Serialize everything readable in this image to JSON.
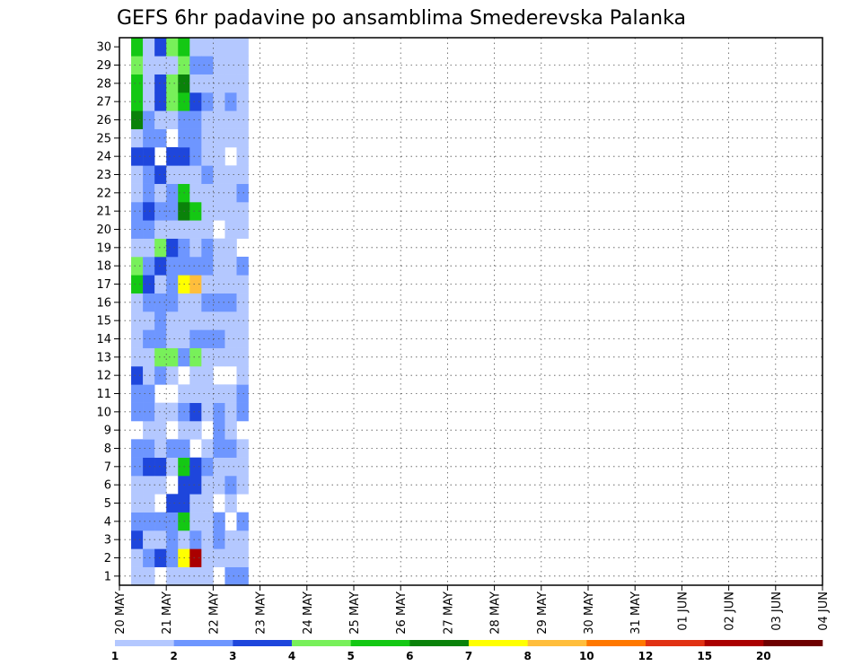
{
  "chart_data": {
    "type": "heatmap",
    "title": "GEFS 6hr padavine po ansamblima Smederevska Palanka",
    "xlabel": "",
    "ylabel": "",
    "x_tick_labels": [
      "20 MAY",
      "21 MAY",
      "22 MAY",
      "23 MAY",
      "24 MAY",
      "25 MAY",
      "26 MAY",
      "27 MAY",
      "28 MAY",
      "29 MAY",
      "30 MAY",
      "31 MAY",
      "01 JUN",
      "02 JUN",
      "03 JUN",
      "04 JUN"
    ],
    "x_range_days": [
      0,
      15
    ],
    "y_tick_labels": [
      "1",
      "2",
      "3",
      "4",
      "5",
      "6",
      "7",
      "8",
      "9",
      "10",
      "11",
      "12",
      "13",
      "14",
      "15",
      "16",
      "17",
      "18",
      "19",
      "20",
      "21",
      "22",
      "23",
      "24",
      "25",
      "26",
      "27",
      "28",
      "29",
      "30"
    ],
    "y_range": [
      0.5,
      30.5
    ],
    "time_step_hours": 6,
    "grid": "dotted",
    "legend_position": "bottom",
    "legend": {
      "levels": [
        "1",
        "2",
        "3",
        "4",
        "5",
        "6",
        "7",
        "8",
        "10",
        "12",
        "15",
        "20"
      ],
      "colors": [
        "#b4c8ff",
        "#6e96ff",
        "#1e46dc",
        "#78f05a",
        "#14c814",
        "#0a820a",
        "#ffff00",
        "#ffbe3c",
        "#ff7800",
        "#e13214",
        "#aa0000",
        "#6e0000"
      ]
    },
    "colors": [
      "#b4c8ff",
      "#6e96ff",
      "#1e46dc",
      "#78f05a",
      "#14c814",
      "#0a820a",
      "#ffff00",
      "#ffbe3c",
      "#ff7800",
      "#e13214",
      "#aa0000",
      "#6e0000"
    ],
    "cells": [
      [
        1,
        1,
        1
      ],
      [
        1,
        2,
        1
      ],
      [
        1,
        3,
        3
      ],
      [
        1,
        4,
        2
      ],
      [
        1,
        5,
        1
      ],
      [
        1,
        6,
        1
      ],
      [
        1,
        7,
        2
      ],
      [
        1,
        8,
        2
      ],
      [
        1,
        10,
        2
      ],
      [
        1,
        11,
        2
      ],
      [
        1,
        12,
        3
      ],
      [
        1,
        13,
        1
      ],
      [
        1,
        14,
        1
      ],
      [
        1,
        15,
        1
      ],
      [
        1,
        16,
        1
      ],
      [
        1,
        17,
        5
      ],
      [
        1,
        18,
        4
      ],
      [
        1,
        19,
        1
      ],
      [
        1,
        20,
        2
      ],
      [
        1,
        21,
        2
      ],
      [
        1,
        22,
        1
      ],
      [
        1,
        23,
        1
      ],
      [
        1,
        24,
        3
      ],
      [
        1,
        25,
        1
      ],
      [
        1,
        26,
        6
      ],
      [
        1,
        27,
        5
      ],
      [
        1,
        28,
        5
      ],
      [
        1,
        29,
        4
      ],
      [
        1,
        30,
        5
      ],
      [
        2,
        1,
        1
      ],
      [
        2,
        2,
        2
      ],
      [
        2,
        3,
        1
      ],
      [
        2,
        4,
        2
      ],
      [
        2,
        5,
        1
      ],
      [
        2,
        6,
        1
      ],
      [
        2,
        7,
        3
      ],
      [
        2,
        8,
        2
      ],
      [
        2,
        9,
        1
      ],
      [
        2,
        10,
        2
      ],
      [
        2,
        11,
        2
      ],
      [
        2,
        12,
        1
      ],
      [
        2,
        13,
        1
      ],
      [
        2,
        14,
        2
      ],
      [
        2,
        15,
        1
      ],
      [
        2,
        16,
        2
      ],
      [
        2,
        17,
        3
      ],
      [
        2,
        18,
        2
      ],
      [
        2,
        19,
        1
      ],
      [
        2,
        20,
        2
      ],
      [
        2,
        21,
        3
      ],
      [
        2,
        22,
        2
      ],
      [
        2,
        23,
        2
      ],
      [
        2,
        24,
        3
      ],
      [
        2,
        25,
        2
      ],
      [
        2,
        26,
        2
      ],
      [
        2,
        27,
        1
      ],
      [
        2,
        28,
        1
      ],
      [
        2,
        29,
        1
      ],
      [
        2,
        30,
        1
      ],
      [
        3,
        2,
        3
      ],
      [
        3,
        3,
        1
      ],
      [
        3,
        4,
        2
      ],
      [
        3,
        6,
        1
      ],
      [
        3,
        7,
        3
      ],
      [
        3,
        8,
        1
      ],
      [
        3,
        9,
        1
      ],
      [
        3,
        10,
        1
      ],
      [
        3,
        12,
        2
      ],
      [
        3,
        13,
        4
      ],
      [
        3,
        14,
        2
      ],
      [
        3,
        15,
        2
      ],
      [
        3,
        16,
        2
      ],
      [
        3,
        17,
        1
      ],
      [
        3,
        18,
        3
      ],
      [
        3,
        19,
        4
      ],
      [
        3,
        20,
        1
      ],
      [
        3,
        21,
        2
      ],
      [
        3,
        22,
        1
      ],
      [
        3,
        23,
        3
      ],
      [
        3,
        25,
        2
      ],
      [
        3,
        26,
        1
      ],
      [
        3,
        27,
        3
      ],
      [
        3,
        28,
        3
      ],
      [
        3,
        29,
        1
      ],
      [
        3,
        30,
        3
      ],
      [
        4,
        1,
        1
      ],
      [
        4,
        2,
        2
      ],
      [
        4,
        3,
        2
      ],
      [
        4,
        4,
        2
      ],
      [
        4,
        5,
        3
      ],
      [
        4,
        7,
        1
      ],
      [
        4,
        8,
        2
      ],
      [
        4,
        10,
        1
      ],
      [
        4,
        12,
        1
      ],
      [
        4,
        13,
        4
      ],
      [
        4,
        14,
        1
      ],
      [
        4,
        15,
        1
      ],
      [
        4,
        16,
        2
      ],
      [
        4,
        17,
        2
      ],
      [
        4,
        18,
        2
      ],
      [
        4,
        19,
        3
      ],
      [
        4,
        20,
        1
      ],
      [
        4,
        21,
        2
      ],
      [
        4,
        22,
        2
      ],
      [
        4,
        23,
        1
      ],
      [
        4,
        24,
        3
      ],
      [
        4,
        26,
        1
      ],
      [
        4,
        27,
        4
      ],
      [
        4,
        28,
        4
      ],
      [
        4,
        29,
        1
      ],
      [
        4,
        30,
        4
      ],
      [
        5,
        1,
        1
      ],
      [
        5,
        2,
        7
      ],
      [
        5,
        3,
        1
      ],
      [
        5,
        4,
        5
      ],
      [
        5,
        5,
        3
      ],
      [
        5,
        6,
        3
      ],
      [
        5,
        7,
        5
      ],
      [
        5,
        8,
        2
      ],
      [
        5,
        9,
        1
      ],
      [
        5,
        10,
        2
      ],
      [
        5,
        11,
        1
      ],
      [
        5,
        13,
        2
      ],
      [
        5,
        14,
        1
      ],
      [
        5,
        15,
        1
      ],
      [
        5,
        16,
        1
      ],
      [
        5,
        17,
        7
      ],
      [
        5,
        18,
        2
      ],
      [
        5,
        19,
        2
      ],
      [
        5,
        20,
        1
      ],
      [
        5,
        21,
        6
      ],
      [
        5,
        22,
        5
      ],
      [
        5,
        23,
        1
      ],
      [
        5,
        24,
        3
      ],
      [
        5,
        25,
        2
      ],
      [
        5,
        26,
        2
      ],
      [
        5,
        27,
        5
      ],
      [
        5,
        28,
        6
      ],
      [
        5,
        29,
        4
      ],
      [
        5,
        30,
        5
      ],
      [
        6,
        1,
        1
      ],
      [
        6,
        2,
        11
      ],
      [
        6,
        3,
        2
      ],
      [
        6,
        4,
        1
      ],
      [
        6,
        5,
        1
      ],
      [
        6,
        6,
        3
      ],
      [
        6,
        7,
        3
      ],
      [
        6,
        9,
        1
      ],
      [
        6,
        10,
        3
      ],
      [
        6,
        11,
        1
      ],
      [
        6,
        12,
        1
      ],
      [
        6,
        13,
        4
      ],
      [
        6,
        14,
        2
      ],
      [
        6,
        15,
        1
      ],
      [
        6,
        16,
        1
      ],
      [
        6,
        17,
        8
      ],
      [
        6,
        18,
        2
      ],
      [
        6,
        19,
        1
      ],
      [
        6,
        20,
        1
      ],
      [
        6,
        21,
        5
      ],
      [
        6,
        22,
        1
      ],
      [
        6,
        23,
        1
      ],
      [
        6,
        24,
        2
      ],
      [
        6,
        25,
        2
      ],
      [
        6,
        26,
        2
      ],
      [
        6,
        27,
        3
      ],
      [
        6,
        28,
        1
      ],
      [
        6,
        29,
        2
      ],
      [
        6,
        30,
        1
      ],
      [
        7,
        1,
        1
      ],
      [
        7,
        2,
        1
      ],
      [
        7,
        3,
        1
      ],
      [
        7,
        4,
        1
      ],
      [
        7,
        5,
        1
      ],
      [
        7,
        6,
        1
      ],
      [
        7,
        7,
        2
      ],
      [
        7,
        8,
        1
      ],
      [
        7,
        10,
        1
      ],
      [
        7,
        11,
        1
      ],
      [
        7,
        12,
        1
      ],
      [
        7,
        13,
        1
      ],
      [
        7,
        14,
        2
      ],
      [
        7,
        15,
        1
      ],
      [
        7,
        16,
        2
      ],
      [
        7,
        17,
        1
      ],
      [
        7,
        18,
        2
      ],
      [
        7,
        19,
        2
      ],
      [
        7,
        20,
        1
      ],
      [
        7,
        21,
        1
      ],
      [
        7,
        22,
        1
      ],
      [
        7,
        23,
        2
      ],
      [
        7,
        24,
        1
      ],
      [
        7,
        25,
        1
      ],
      [
        7,
        26,
        1
      ],
      [
        7,
        27,
        2
      ],
      [
        7,
        28,
        1
      ],
      [
        7,
        29,
        2
      ],
      [
        7,
        30,
        1
      ],
      [
        8,
        2,
        1
      ],
      [
        8,
        3,
        2
      ],
      [
        8,
        4,
        2
      ],
      [
        8,
        6,
        1
      ],
      [
        8,
        7,
        1
      ],
      [
        8,
        8,
        2
      ],
      [
        8,
        9,
        2
      ],
      [
        8,
        10,
        2
      ],
      [
        8,
        11,
        1
      ],
      [
        8,
        13,
        1
      ],
      [
        8,
        14,
        2
      ],
      [
        8,
        15,
        1
      ],
      [
        8,
        16,
        2
      ],
      [
        8,
        17,
        1
      ],
      [
        8,
        18,
        1
      ],
      [
        8,
        19,
        1
      ],
      [
        8,
        21,
        1
      ],
      [
        8,
        22,
        1
      ],
      [
        8,
        23,
        1
      ],
      [
        8,
        24,
        1
      ],
      [
        8,
        25,
        1
      ],
      [
        8,
        26,
        1
      ],
      [
        8,
        27,
        1
      ],
      [
        8,
        28,
        1
      ],
      [
        8,
        29,
        1
      ],
      [
        8,
        30,
        1
      ],
      [
        9,
        1,
        2
      ],
      [
        9,
        2,
        1
      ],
      [
        9,
        3,
        1
      ],
      [
        9,
        5,
        1
      ],
      [
        9,
        6,
        2
      ],
      [
        9,
        7,
        1
      ],
      [
        9,
        8,
        2
      ],
      [
        9,
        9,
        1
      ],
      [
        9,
        10,
        1
      ],
      [
        9,
        11,
        1
      ],
      [
        9,
        13,
        1
      ],
      [
        9,
        14,
        1
      ],
      [
        9,
        15,
        1
      ],
      [
        9,
        16,
        2
      ],
      [
        9,
        17,
        1
      ],
      [
        9,
        18,
        1
      ],
      [
        9,
        19,
        1
      ],
      [
        9,
        20,
        1
      ],
      [
        9,
        21,
        1
      ],
      [
        9,
        22,
        1
      ],
      [
        9,
        23,
        1
      ],
      [
        9,
        25,
        1
      ],
      [
        9,
        26,
        1
      ],
      [
        9,
        27,
        2
      ],
      [
        9,
        28,
        1
      ],
      [
        9,
        29,
        1
      ],
      [
        9,
        30,
        1
      ],
      [
        10,
        1,
        2
      ],
      [
        10,
        2,
        1
      ],
      [
        10,
        3,
        1
      ],
      [
        10,
        4,
        2
      ],
      [
        10,
        6,
        1
      ],
      [
        10,
        7,
        1
      ],
      [
        10,
        8,
        1
      ],
      [
        10,
        10,
        2
      ],
      [
        10,
        11,
        2
      ],
      [
        10,
        12,
        1
      ],
      [
        10,
        13,
        1
      ],
      [
        10,
        14,
        1
      ],
      [
        10,
        15,
        1
      ],
      [
        10,
        16,
        1
      ],
      [
        10,
        17,
        1
      ],
      [
        10,
        18,
        2
      ],
      [
        10,
        20,
        1
      ],
      [
        10,
        21,
        1
      ],
      [
        10,
        22,
        2
      ],
      [
        10,
        23,
        1
      ],
      [
        10,
        24,
        1
      ],
      [
        10,
        25,
        1
      ],
      [
        10,
        26,
        1
      ],
      [
        10,
        27,
        1
      ],
      [
        10,
        28,
        1
      ],
      [
        10,
        29,
        1
      ],
      [
        10,
        30,
        1
      ]
    ]
  },
  "note_cells_format": ""
}
